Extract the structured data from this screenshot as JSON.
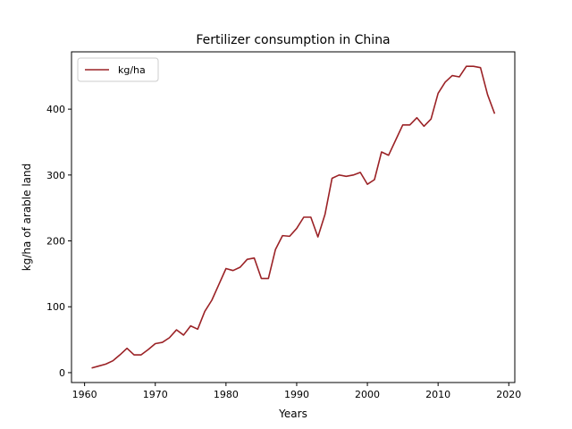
{
  "chart_data": {
    "type": "line",
    "title": "Fertilizer consumption in China",
    "xlabel": "Years",
    "ylabel": "kg/ha of arable land",
    "xlim": [
      1958.15,
      2020.85
    ],
    "ylim": [
      -15,
      487
    ],
    "xticks": [
      1960,
      1970,
      1980,
      1990,
      2000,
      2010,
      2020
    ],
    "yticks": [
      0,
      100,
      200,
      300,
      400
    ],
    "grid": false,
    "legend": "top-left",
    "series": [
      {
        "name": "kg/ha",
        "color": "#9b2226",
        "x": [
          1961,
          1962,
          1963,
          1964,
          1965,
          1966,
          1967,
          1968,
          1969,
          1970,
          1971,
          1972,
          1973,
          1974,
          1975,
          1976,
          1977,
          1978,
          1979,
          1980,
          1981,
          1982,
          1983,
          1984,
          1985,
          1986,
          1987,
          1988,
          1989,
          1990,
          1991,
          1992,
          1993,
          1994,
          1995,
          1996,
          1997,
          1998,
          1999,
          2000,
          2001,
          2002,
          2003,
          2004,
          2005,
          2006,
          2007,
          2008,
          2009,
          2010,
          2011,
          2012,
          2013,
          2014,
          2015,
          2016,
          2017,
          2018
        ],
        "y": [
          7,
          10,
          13,
          18,
          27,
          37,
          27,
          27,
          35,
          44,
          46,
          53,
          65,
          57,
          71,
          66,
          93,
          110,
          134,
          158,
          155,
          160,
          172,
          174,
          143,
          143,
          187,
          208,
          207,
          219,
          236,
          236,
          206,
          240,
          295,
          300,
          298,
          300,
          304,
          286,
          293,
          335,
          330,
          353,
          376,
          376,
          387,
          374,
          385,
          424,
          441,
          451,
          449,
          465,
          465,
          463,
          422,
          393
        ]
      }
    ]
  }
}
